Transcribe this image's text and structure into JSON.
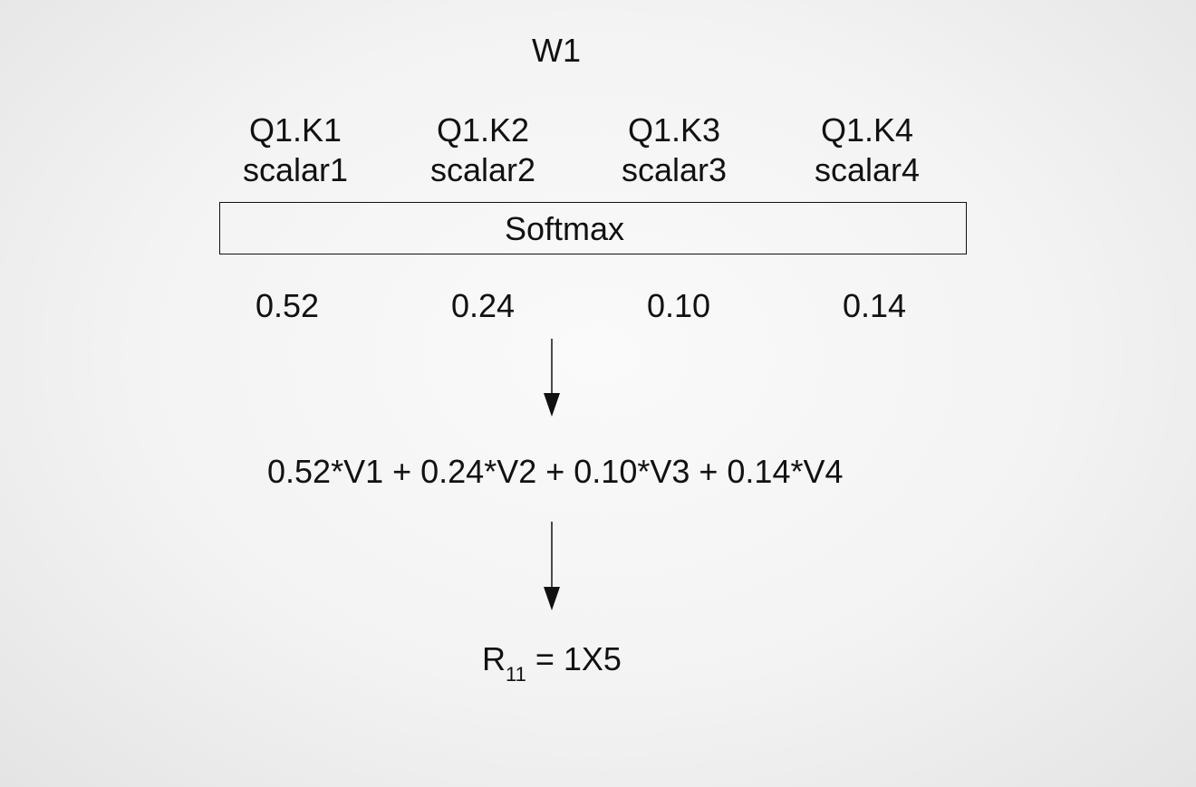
{
  "title": "W1",
  "dot_products": [
    {
      "product": "Q1.K1",
      "scalar": "scalar1"
    },
    {
      "product": "Q1.K2",
      "scalar": "scalar2"
    },
    {
      "product": "Q1.K3",
      "scalar": "scalar3"
    },
    {
      "product": "Q1.K4",
      "scalar": "scalar4"
    }
  ],
  "softmax_label": "Softmax",
  "weights": [
    "0.52",
    "0.24",
    "0.10",
    "0.14"
  ],
  "weighted_sum": "0.52*V1 + 0.24*V2 + 0.10*V3 + 0.14*V4",
  "result": {
    "symbol": "R",
    "subscript": "11",
    "expression": " = 1X5"
  }
}
